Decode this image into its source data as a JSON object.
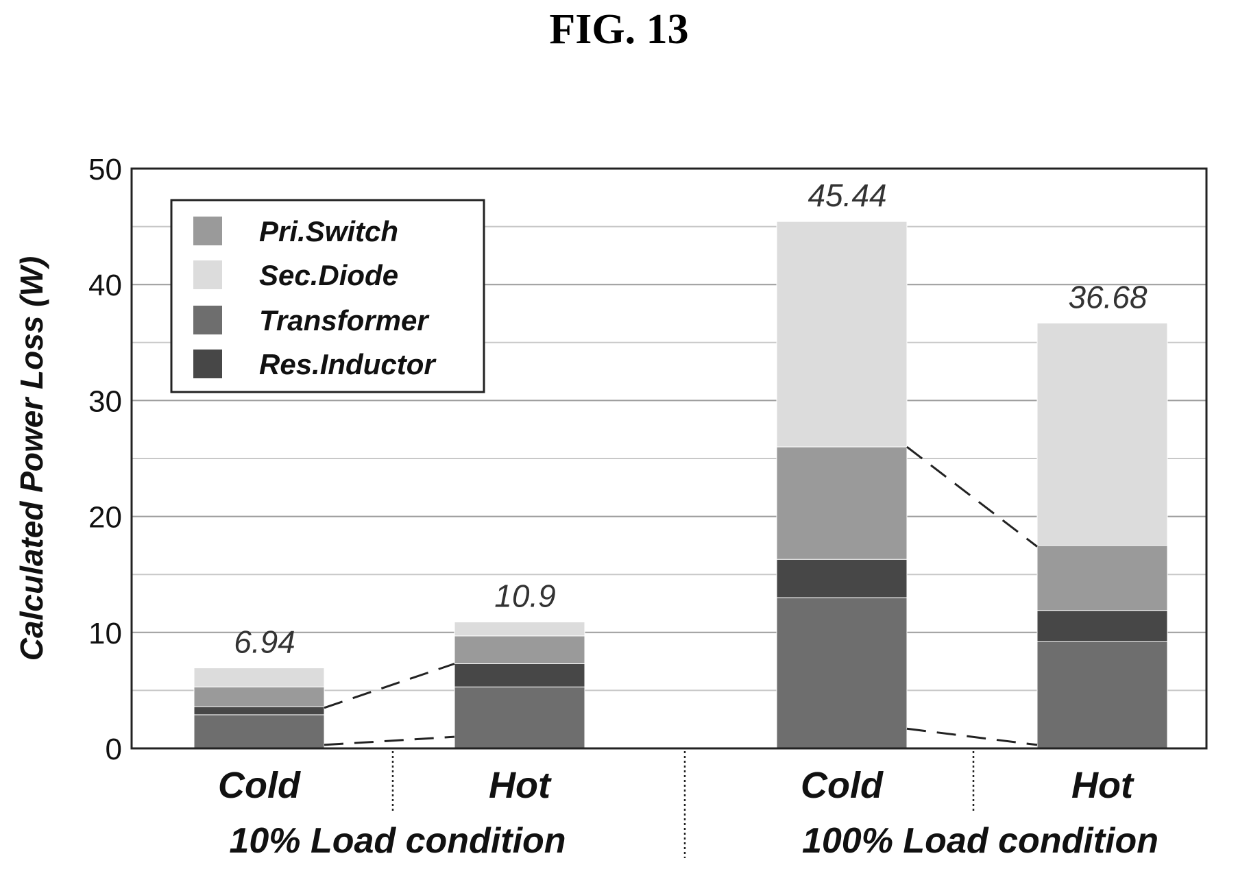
{
  "figure_title": "FIG. 13",
  "chart_data": {
    "type": "bar",
    "stacked": true,
    "ylabel": "Calculated Power Loss (W)",
    "xlabel": "",
    "ylim": [
      0,
      50
    ],
    "yticks": [
      0,
      10,
      20,
      30,
      40,
      50
    ],
    "grid": true,
    "legend_position": "top-left",
    "groups": [
      {
        "label": "10% Load condition",
        "categories": [
          "Cold",
          "Hot"
        ]
      },
      {
        "label": "100% Load condition",
        "categories": [
          "Cold",
          "Hot"
        ]
      }
    ],
    "categories": [
      "Cold",
      "Hot",
      "Cold",
      "Hot"
    ],
    "totals": [
      "6.94",
      "10.9",
      "45.44",
      "36.68"
    ],
    "series": [
      {
        "name": "Transformer",
        "color": "#6e6e6e",
        "values": [
          2.9,
          5.3,
          13.0,
          9.2
        ]
      },
      {
        "name": "Res.Inductor",
        "color": "#474747",
        "values": [
          0.7,
          2.0,
          3.3,
          2.7
        ]
      },
      {
        "name": "Pri.Switch",
        "color": "#9a9a9a",
        "values": [
          1.7,
          2.4,
          9.7,
          5.6
        ]
      },
      {
        "name": "Sec.Diode",
        "color": "#dcdcdc",
        "values": [
          1.64,
          1.2,
          19.44,
          19.18
        ]
      }
    ],
    "legend_order": [
      "Pri.Switch",
      "Sec.Diode",
      "Transformer",
      "Res.Inductor"
    ],
    "dashed_connectors": [
      {
        "from_bar": 0,
        "from_value": 0.3,
        "to_bar": 1,
        "to_value": 1.0
      },
      {
        "from_bar": 0,
        "from_value": 3.5,
        "to_bar": 1,
        "to_value": 7.3
      },
      {
        "from_bar": 2,
        "from_value": 1.7,
        "to_bar": 3,
        "to_value": 0.3
      },
      {
        "from_bar": 2,
        "from_value": 26.0,
        "to_bar": 3,
        "to_value": 17.4
      }
    ]
  }
}
